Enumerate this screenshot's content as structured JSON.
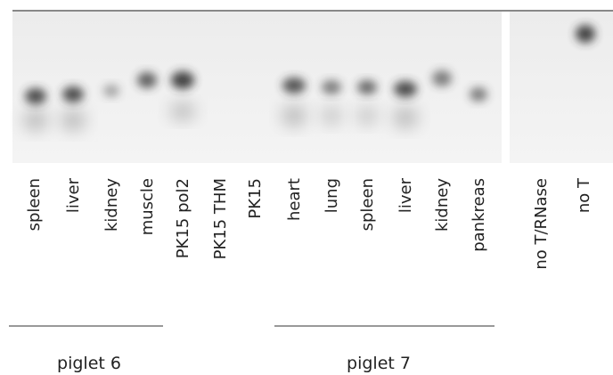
{
  "lanes": [
    "spleen",
    "liver",
    "kidney",
    "muscle",
    "PK15 pol2",
    "PK15 THM",
    "PK15",
    "heart",
    "lung",
    "spleen",
    "liver",
    "kidney",
    "pankreas",
    "no T/RNase",
    "no T"
  ],
  "groups": [
    "piglet 6",
    "piglet 7"
  ]
}
